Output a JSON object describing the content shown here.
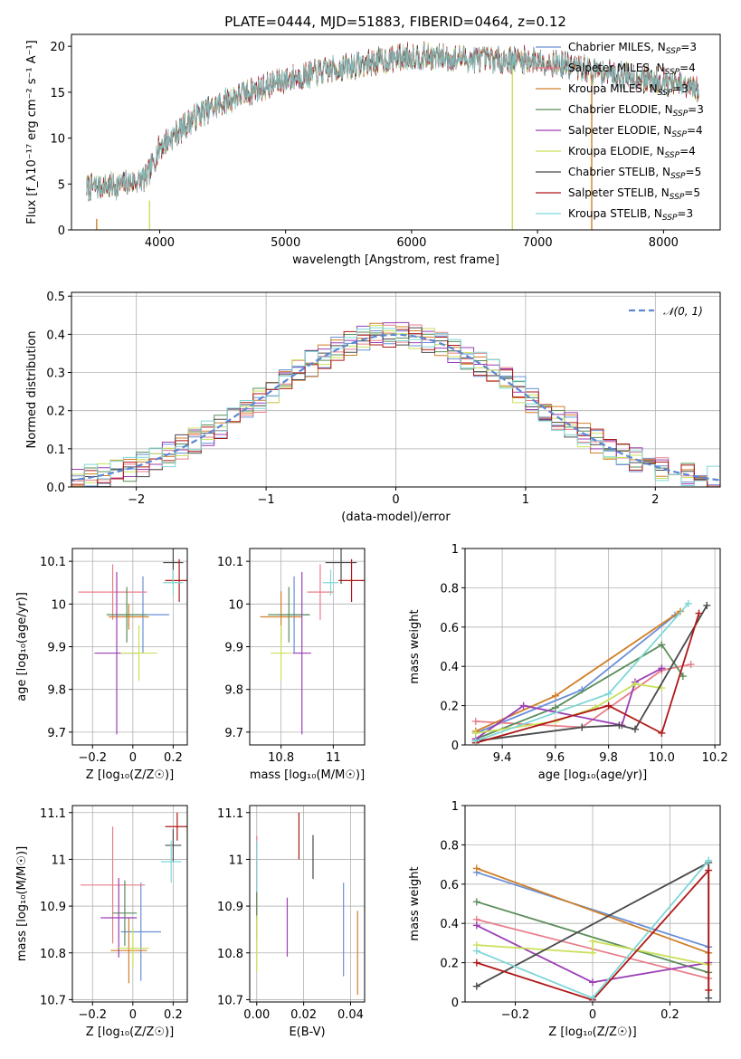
{
  "figure_title": "PLATE=0444, MJD=51883, FIBERID=0464, z=0.12",
  "chart_data": [
    {
      "id": "spectrum",
      "type": "line",
      "title": "PLATE=0444, MJD=51883, FIBERID=0464, z=0.12",
      "xlabel": "wavelength [Angstrom, rest frame]",
      "ylabel": "Flux [f_λ10⁻¹⁷ erg cm⁻² s⁻¹ A⁻¹]",
      "xlim": [
        3300,
        8450
      ],
      "ylim": [
        0,
        21.3
      ],
      "xticks": [
        4000,
        5000,
        6000,
        7000,
        8000
      ],
      "yticks": [
        0,
        5,
        10,
        15,
        20
      ],
      "grid": false,
      "legend": "right",
      "continuum": [
        [
          3420,
          4.6
        ],
        [
          3700,
          4.9
        ],
        [
          3900,
          5.7
        ],
        [
          4000,
          9
        ],
        [
          4300,
          12.5
        ],
        [
          4600,
          14.5
        ],
        [
          5000,
          16.4
        ],
        [
          5500,
          17.8
        ],
        [
          6000,
          19
        ],
        [
          6500,
          18.6
        ],
        [
          7000,
          18.5
        ],
        [
          7500,
          17.2
        ],
        [
          8000,
          16.2
        ],
        [
          8280,
          15.2
        ]
      ],
      "noise_amplitude": 1.3,
      "series": [
        {
          "name": "Chabrier MILES, N_SSP=3",
          "sub": "SSP",
          "n": "3"
        },
        {
          "name": "Salpeter MILES, N_SSP=4",
          "sub": "SSP",
          "n": "4"
        },
        {
          "name": "Kroupa MILES, N_SSP=3",
          "sub": "SSP",
          "n": "3"
        },
        {
          "name": "Chabrier ELODIE, N_SSP=3",
          "sub": "SSP",
          "n": "3"
        },
        {
          "name": "Salpeter ELODIE, N_SSP=4",
          "sub": "SSP",
          "n": "4"
        },
        {
          "name": "Kroupa ELODIE, N_SSP=4",
          "sub": "SSP",
          "n": "4"
        },
        {
          "name": "Chabrier STELIB, N_SSP=5",
          "sub": "SSP",
          "n": "5"
        },
        {
          "name": "Salpeter STELIB, N_SSP=5",
          "sub": "SSP",
          "n": "5"
        },
        {
          "name": "Kroupa STELIB, N_SSP=3",
          "sub": "SSP",
          "n": "3"
        }
      ],
      "legend_labels": [
        {
          "pre": "Chabrier MILES, N",
          "n": "3"
        },
        {
          "pre": "Salpeter MILES, N",
          "n": "4"
        },
        {
          "pre": "Kroupa MILES, N",
          "n": "3"
        },
        {
          "pre": "Chabrier ELODIE, N",
          "n": "3"
        },
        {
          "pre": "Salpeter ELODIE, N",
          "n": "4"
        },
        {
          "pre": "Kroupa ELODIE, N",
          "n": "4"
        },
        {
          "pre": "Chabrier STELIB, N",
          "n": "5"
        },
        {
          "pre": "Salpeter STELIB, N",
          "n": "5"
        },
        {
          "pre": "Kroupa STELIB, N",
          "n": "3"
        }
      ],
      "colors": [
        "#6a8fd8",
        "#e87d8a",
        "#d07f28",
        "#5a8c5a",
        "#9b3fb5",
        "#c9e05a",
        "#4a4a4a",
        "#b01818",
        "#7fd6d6"
      ],
      "drop_lines": [
        {
          "x": 3500,
          "color": "#d07f28",
          "top": 1.2
        },
        {
          "x": 3920,
          "color": "#c9e05a",
          "top": 3.2
        },
        {
          "x": 6800,
          "color": "#c9e05a",
          "top": 17.5
        },
        {
          "x": 7430,
          "color": "#d07f28",
          "top": 17.0
        }
      ]
    },
    {
      "id": "residuals",
      "type": "histogram",
      "xlabel": "(data-model)/error",
      "ylabel": "Normed distribution",
      "xlim": [
        -2.5,
        2.5
      ],
      "ylim": [
        0,
        0.51
      ],
      "xticks": [
        -2,
        -1,
        0,
        1,
        2
      ],
      "yticks": [
        0.0,
        0.1,
        0.2,
        0.3,
        0.4,
        0.5
      ],
      "grid": true,
      "legend": "top-right",
      "reference": {
        "label": "𝒩(0, 1)",
        "style": "dashed",
        "color": "#5b87d6"
      },
      "bin_width": 0.1,
      "colors": [
        "#6a8fd8",
        "#e87d8a",
        "#d07f28",
        "#5a8c5a",
        "#9b3fb5",
        "#c9e05a",
        "#4a4a4a",
        "#b01818",
        "#7fd6d6"
      ]
    },
    {
      "id": "age-vs-Z",
      "type": "scatter",
      "xlabel": "Z [log₁₀(Z/Z☉)]",
      "ylabel": "age  [log₁₀(age/yr)]",
      "xlim": [
        -0.3,
        0.27
      ],
      "ylim": [
        9.67,
        10.13
      ],
      "xticks": [
        -0.2,
        0.0,
        0.2
      ],
      "yticks": [
        9.7,
        9.8,
        9.9,
        10.0,
        10.1
      ],
      "grid": true,
      "points": [
        {
          "x": 0.05,
          "y": 9.975,
          "ex": 0.13,
          "ey": 0.09,
          "c": "#6a8fd8"
        },
        {
          "x": -0.1,
          "y": 10.028,
          "ex": 0.17,
          "ey": 0.065,
          "c": "#e87d8a"
        },
        {
          "x": -0.02,
          "y": 9.97,
          "ex": 0.1,
          "ey": 0.03,
          "c": "#d07f28"
        },
        {
          "x": -0.03,
          "y": 9.975,
          "ex": 0.1,
          "ey": 0.065,
          "c": "#5a8c5a"
        },
        {
          "x": -0.08,
          "y": 9.885,
          "ex": 0.11,
          "ey": 0.19,
          "c": "#9b3fb5"
        },
        {
          "x": 0.03,
          "y": 9.885,
          "ex": 0.09,
          "ey": 0.065,
          "c": "#c9e05a"
        },
        {
          "x": 0.2,
          "y": 10.097,
          "ex": 0.05,
          "ey": 0.05,
          "c": "#4a4a4a"
        },
        {
          "x": 0.23,
          "y": 10.055,
          "ex": 0.07,
          "ey": 0.05,
          "c": "#b01818"
        },
        {
          "x": 0.2,
          "y": 10.05,
          "ex": 0.05,
          "ey": 0.03,
          "c": "#7fd6d6"
        }
      ]
    },
    {
      "id": "age-vs-mass",
      "type": "scatter",
      "xlabel": "mass [log₁₀(M/M☉)]",
      "ylabel": "",
      "xlim": [
        10.68,
        11.12
      ],
      "ylim": [
        9.67,
        10.13
      ],
      "xticks": [
        10.8,
        11.0
      ],
      "yticks": [
        9.7,
        9.8,
        9.9,
        10.0,
        10.1
      ],
      "grid": true,
      "points": [
        {
          "x": 10.85,
          "y": 9.975,
          "ex": 0.06,
          "ey": 0.09,
          "c": "#6a8fd8"
        },
        {
          "x": 10.95,
          "y": 10.028,
          "ex": 0.05,
          "ey": 0.065,
          "c": "#e87d8a"
        },
        {
          "x": 10.8,
          "y": 9.97,
          "ex": 0.08,
          "ey": 0.06,
          "c": "#d07f28"
        },
        {
          "x": 10.83,
          "y": 9.975,
          "ex": 0.08,
          "ey": 0.065,
          "c": "#5a8c5a"
        },
        {
          "x": 10.88,
          "y": 9.885,
          "ex": 0.035,
          "ey": 0.19,
          "c": "#9b3fb5"
        },
        {
          "x": 10.8,
          "y": 9.885,
          "ex": 0.04,
          "ey": 0.065,
          "c": "#c9e05a"
        },
        {
          "x": 11.03,
          "y": 10.097,
          "ex": 0.06,
          "ey": 0.05,
          "c": "#4a4a4a"
        },
        {
          "x": 11.07,
          "y": 10.055,
          "ex": 0.05,
          "ey": 0.05,
          "c": "#b01818"
        },
        {
          "x": 10.99,
          "y": 10.05,
          "ex": 0.03,
          "ey": 0.03,
          "c": "#7fd6d6"
        }
      ]
    },
    {
      "id": "weight-vs-age",
      "type": "line",
      "xlabel": "age  [log₁₀(age/yr)]",
      "ylabel": "mass weight",
      "xlim": [
        9.26,
        10.22
      ],
      "ylim": [
        0,
        1.0
      ],
      "xticks": [
        9.4,
        9.6,
        9.8,
        10.0,
        10.2
      ],
      "xtick_labels": [
        "9.4",
        "9.6",
        "9.8",
        "10.0",
        "10.2"
      ],
      "yticks": [
        0.0,
        0.2,
        0.4,
        0.6,
        0.8,
        1.0
      ],
      "grid": true,
      "series": [
        {
          "c": "#6a8fd8",
          "pts": [
            [
              9.3,
              0.06
            ],
            [
              9.7,
              0.28
            ],
            [
              10.05,
              0.66
            ]
          ]
        },
        {
          "c": "#e87d8a",
          "pts": [
            [
              9.3,
              0.12
            ],
            [
              9.7,
              0.09
            ],
            [
              10.0,
              0.38
            ],
            [
              10.11,
              0.41
            ]
          ]
        },
        {
          "c": "#d07f28",
          "pts": [
            [
              9.3,
              0.07
            ],
            [
              9.6,
              0.25
            ],
            [
              10.07,
              0.68
            ]
          ]
        },
        {
          "c": "#5a8c5a",
          "pts": [
            [
              9.3,
              0.03
            ],
            [
              9.6,
              0.19
            ],
            [
              10.0,
              0.51
            ],
            [
              10.08,
              0.35
            ]
          ]
        },
        {
          "c": "#9b3fb5",
          "pts": [
            [
              9.3,
              0.03
            ],
            [
              9.48,
              0.2
            ],
            [
              9.85,
              0.1
            ],
            [
              9.9,
              0.32
            ],
            [
              10.0,
              0.39
            ]
          ]
        },
        {
          "c": "#c9e05a",
          "pts": [
            [
              9.3,
              0.06
            ],
            [
              9.6,
              0.12
            ],
            [
              9.75,
              0.19
            ],
            [
              9.9,
              0.31
            ],
            [
              10.0,
              0.29
            ]
          ]
        },
        {
          "c": "#4a4a4a",
          "pts": [
            [
              9.3,
              0.02
            ],
            [
              9.7,
              0.09
            ],
            [
              9.84,
              0.1
            ],
            [
              9.9,
              0.08
            ],
            [
              10.17,
              0.71
            ]
          ]
        },
        {
          "c": "#b01818",
          "pts": [
            [
              9.3,
              0.01
            ],
            [
              9.8,
              0.2
            ],
            [
              10.0,
              0.06
            ],
            [
              10.14,
              0.67
            ]
          ]
        },
        {
          "c": "#7fd6d6",
          "pts": [
            [
              9.3,
              0.02
            ],
            [
              9.8,
              0.26
            ],
            [
              10.1,
              0.72
            ]
          ]
        }
      ]
    },
    {
      "id": "mass-vs-Z",
      "type": "scatter",
      "xlabel": "Z [log₁₀(Z/Z☉)]",
      "ylabel": "mass [log₁₀(M/M☉)]",
      "xlim": [
        -0.3,
        0.27
      ],
      "ylim": [
        10.695,
        11.115
      ],
      "xticks": [
        -0.2,
        0.0,
        0.2
      ],
      "yticks": [
        10.7,
        10.8,
        10.9,
        11.0,
        11.1
      ],
      "grid": true,
      "points": [
        {
          "x": 0.04,
          "y": 10.845,
          "ex": 0.1,
          "ey": 0.105,
          "c": "#6a8fd8"
        },
        {
          "x": -0.1,
          "y": 10.945,
          "ex": 0.16,
          "ey": 0.125,
          "c": "#e87d8a"
        },
        {
          "x": -0.02,
          "y": 10.805,
          "ex": 0.09,
          "ey": 0.07,
          "c": "#d07f28"
        },
        {
          "x": -0.04,
          "y": 10.885,
          "ex": 0.06,
          "ey": 0.07,
          "c": "#5a8c5a"
        },
        {
          "x": -0.07,
          "y": 10.875,
          "ex": 0.09,
          "ey": 0.085,
          "c": "#9b3fb5"
        },
        {
          "x": 0.0,
          "y": 10.81,
          "ex": 0.08,
          "ey": 0.04,
          "c": "#c9e05a"
        },
        {
          "x": 0.2,
          "y": 11.03,
          "ex": 0.04,
          "ey": 0.035,
          "c": "#4a4a4a"
        },
        {
          "x": 0.22,
          "y": 11.07,
          "ex": 0.06,
          "ey": 0.03,
          "c": "#b01818"
        },
        {
          "x": 0.19,
          "y": 10.995,
          "ex": 0.05,
          "ey": 0.045,
          "c": "#7fd6d6"
        }
      ]
    },
    {
      "id": "mass-vs-EBV",
      "type": "scatter",
      "xlabel": "E(B-V)",
      "ylabel": "",
      "xlim": [
        -0.003,
        0.046
      ],
      "ylim": [
        10.695,
        11.115
      ],
      "xticks": [
        0.0,
        0.02,
        0.04
      ],
      "xtick_labels": [
        "0.00",
        "0.02",
        "0.04"
      ],
      "yticks": [
        10.7,
        10.8,
        10.9,
        11.0,
        11.1
      ],
      "grid": true,
      "points": [
        {
          "x": 0.037,
          "y": 10.85,
          "ex": 0,
          "ey": 0.1,
          "c": "#6a8fd8"
        },
        {
          "x": 0.0,
          "y": 10.94,
          "ex": 0,
          "ey": 0.11,
          "c": "#e87d8a"
        },
        {
          "x": 0.043,
          "y": 10.8,
          "ex": 0,
          "ey": 0.09,
          "c": "#d07f28"
        },
        {
          "x": 0.0,
          "y": 10.9,
          "ex": 0,
          "ey": 0.03,
          "c": "#5a8c5a"
        },
        {
          "x": 0.013,
          "y": 10.855,
          "ex": 0,
          "ey": 0.063,
          "c": "#9b3fb5"
        },
        {
          "x": 0.0,
          "y": 10.82,
          "ex": 0,
          "ey": 0.06,
          "c": "#c9e05a"
        },
        {
          "x": 0.024,
          "y": 11.005,
          "ex": 0,
          "ey": 0.047,
          "c": "#4a4a4a"
        },
        {
          "x": 0.018,
          "y": 11.05,
          "ex": 0,
          "ey": 0.05,
          "c": "#b01818"
        },
        {
          "x": 0.0,
          "y": 10.985,
          "ex": 0,
          "ey": 0.055,
          "c": "#7fd6d6"
        }
      ]
    },
    {
      "id": "weight-vs-Z",
      "type": "line",
      "xlabel": "Z [log₁₀(Z/Z☉)]",
      "ylabel": "mass weight",
      "xlim": [
        -0.33,
        0.33
      ],
      "ylim": [
        0,
        1.0
      ],
      "xticks": [
        -0.2,
        0.0,
        0.2
      ],
      "yticks": [
        0.0,
        0.2,
        0.4,
        0.6,
        0.8,
        1.0
      ],
      "grid": true,
      "series": [
        {
          "c": "#6a8fd8",
          "pts": [
            [
              -0.3,
              0.66
            ],
            [
              0.3,
              0.28
            ]
          ]
        },
        {
          "c": "#e87d8a",
          "pts": [
            [
              -0.3,
              0.42
            ],
            [
              0.3,
              0.12
            ]
          ]
        },
        {
          "c": "#d07f28",
          "pts": [
            [
              -0.3,
              0.68
            ],
            [
              0.3,
              0.25
            ]
          ]
        },
        {
          "c": "#5a8c5a",
          "pts": [
            [
              -0.3,
              0.51
            ],
            [
              0.3,
              0.15
            ]
          ]
        },
        {
          "c": "#9b3fb5",
          "pts": [
            [
              -0.3,
              0.39
            ],
            [
              0.0,
              0.1
            ],
            [
              0.3,
              0.2
            ]
          ]
        },
        {
          "c": "#c9e05a",
          "pts": [
            [
              -0.3,
              0.29
            ],
            [
              0.0,
              0.25
            ],
            [
              0.0,
              0.31
            ],
            [
              0.3,
              0.19
            ]
          ]
        },
        {
          "c": "#4a4a4a",
          "pts": [
            [
              -0.3,
              0.08
            ],
            [
              0.3,
              0.71
            ],
            [
              0.3,
              0.02
            ]
          ]
        },
        {
          "c": "#b01818",
          "pts": [
            [
              -0.3,
              0.2
            ],
            [
              0.0,
              0.01
            ],
            [
              0.3,
              0.67
            ],
            [
              0.3,
              0.06
            ]
          ]
        },
        {
          "c": "#7fd6d6",
          "pts": [
            [
              -0.3,
              0.26
            ],
            [
              0.0,
              0.02
            ],
            [
              0.3,
              0.72
            ]
          ]
        }
      ]
    }
  ]
}
